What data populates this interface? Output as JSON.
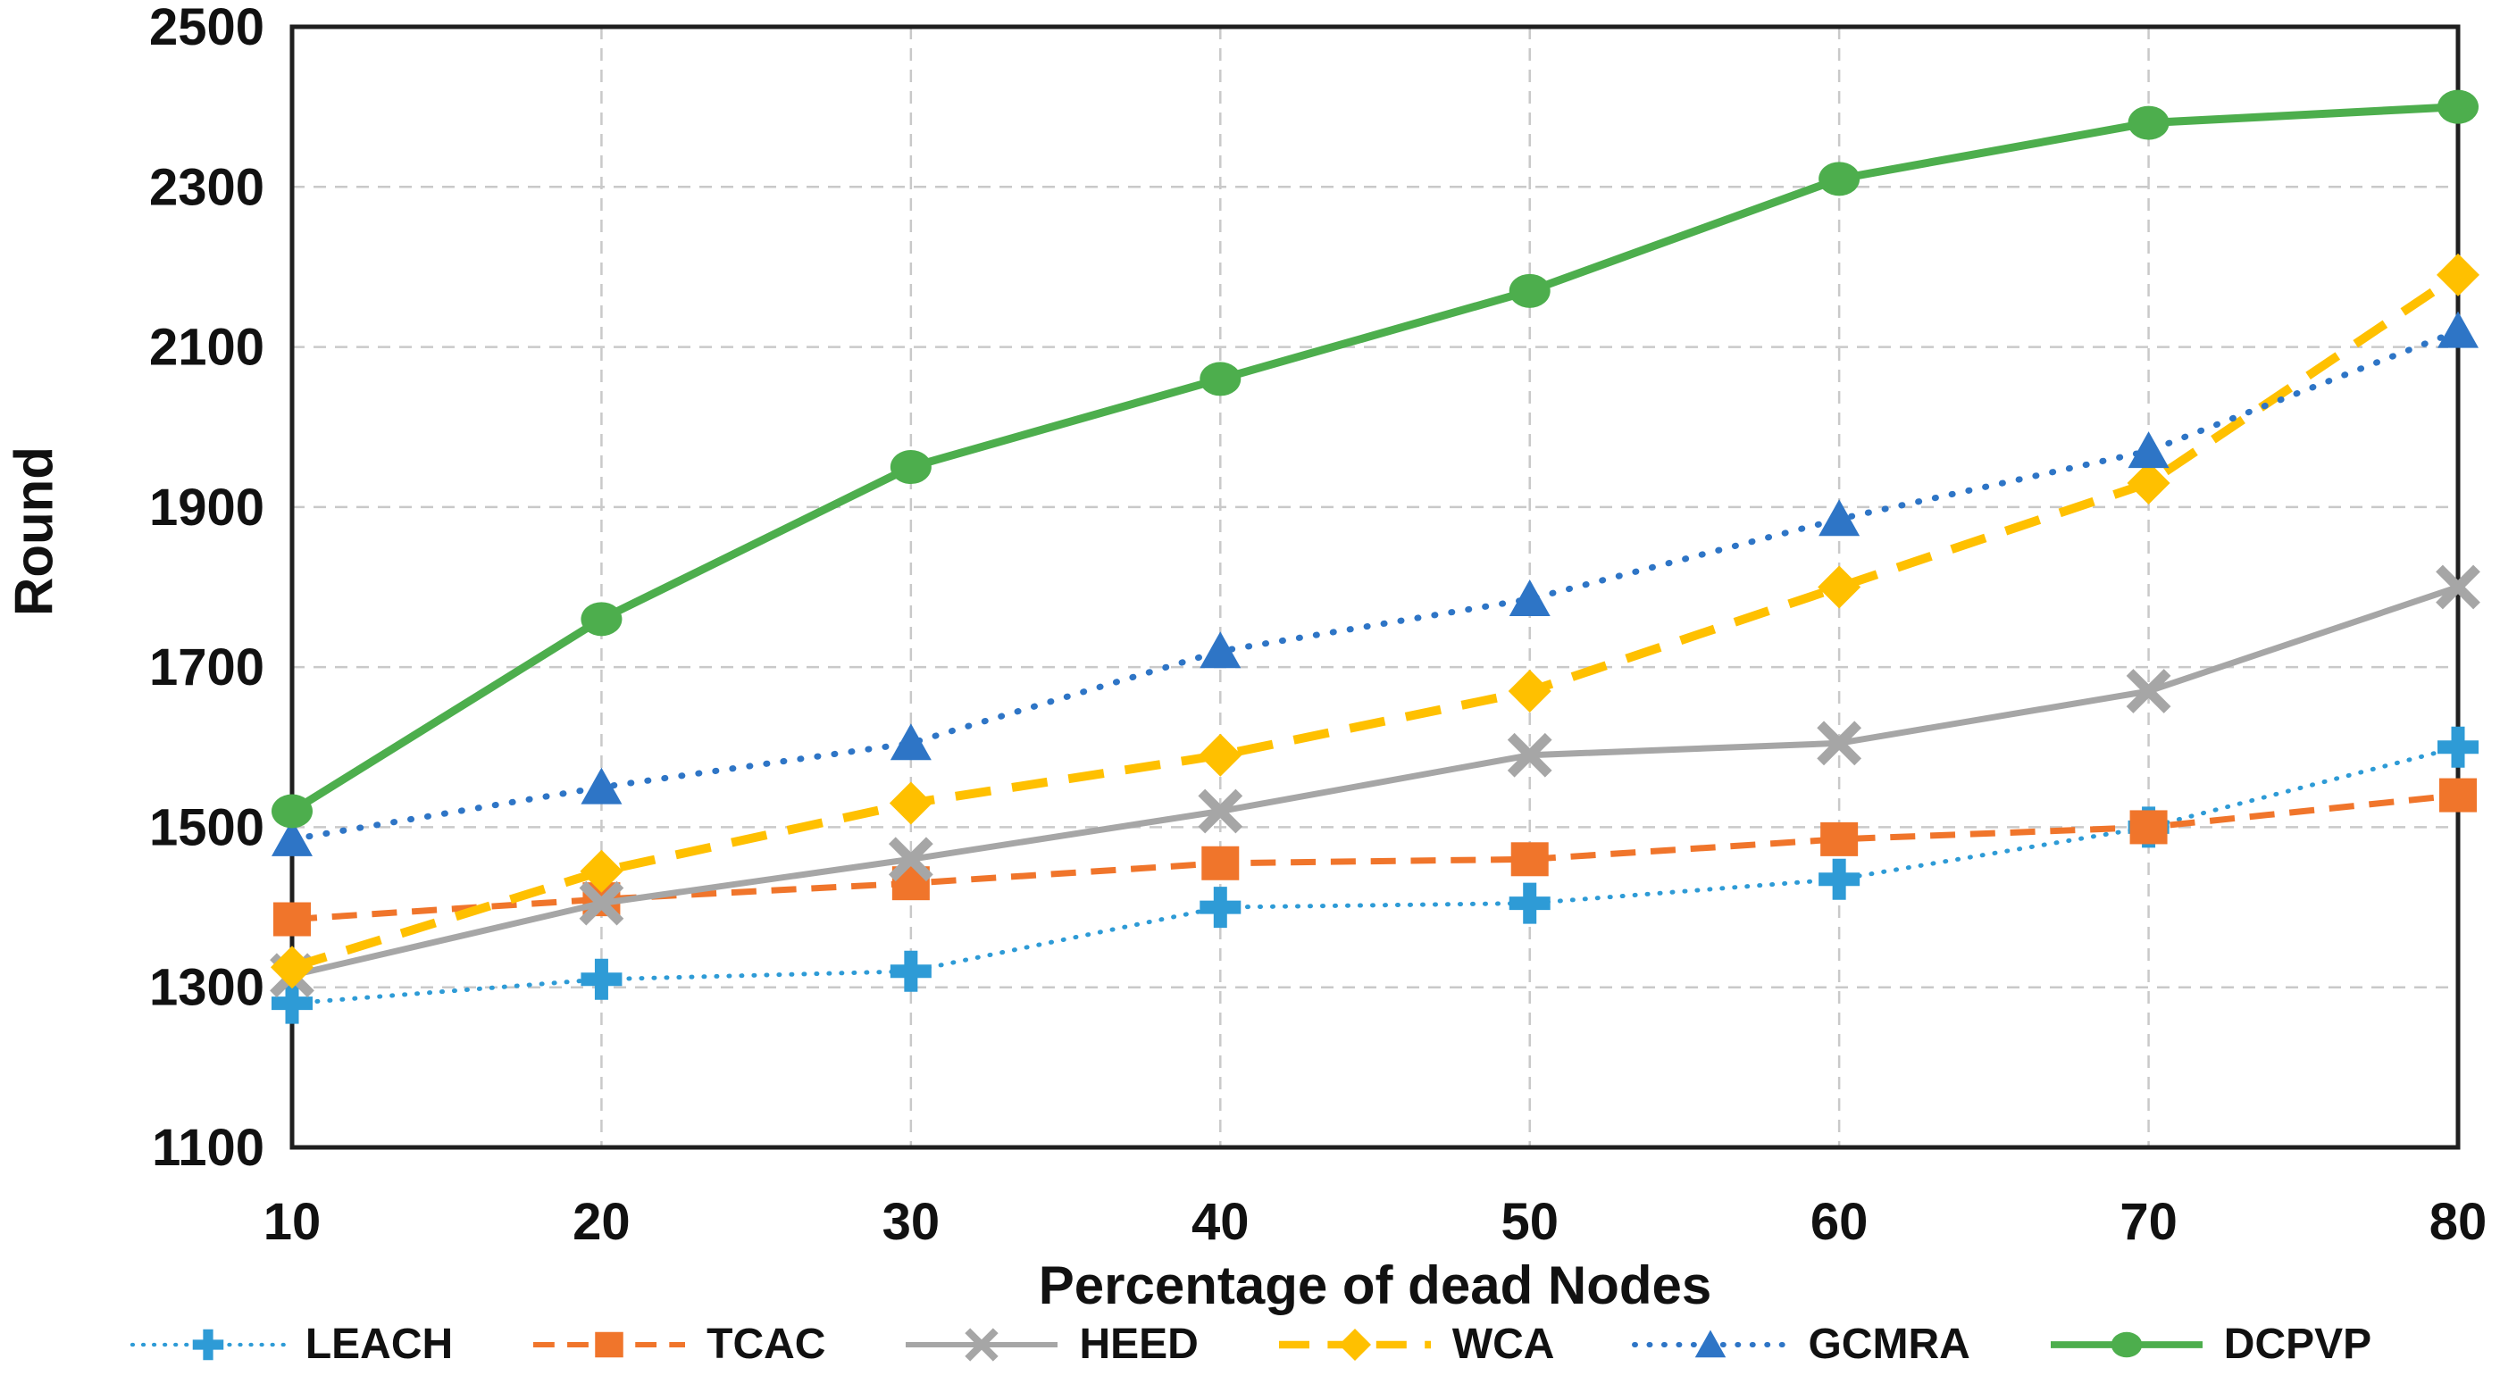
{
  "figure": {
    "y_axis_title": "Round",
    "x_axis_title": "Percentage of dead Nodes"
  },
  "chart_data": {
    "type": "line",
    "title": "",
    "xlabel": "Percentage of dead Nodes",
    "ylabel": "Round",
    "x": [
      10,
      20,
      30,
      40,
      50,
      60,
      70,
      80
    ],
    "xlim": [
      10,
      80
    ],
    "ylim": [
      1100,
      2500
    ],
    "xticks": [
      10,
      20,
      30,
      40,
      50,
      60,
      70,
      80
    ],
    "yticks": [
      1100,
      1300,
      1500,
      1700,
      1900,
      2100,
      2300,
      2500
    ],
    "grid": "dashed-both-axes",
    "legend_position": "bottom",
    "series": [
      {
        "name": "LEACH",
        "color": "#2E9BD6",
        "line_style": "dotted",
        "marker": "plus",
        "values": [
          1280,
          1310,
          1320,
          1400,
          1405,
          1435,
          1500,
          1600
        ]
      },
      {
        "name": "TCAC",
        "color": "#F0752B",
        "line_style": "dashed",
        "marker": "square",
        "values": [
          1385,
          1410,
          1430,
          1455,
          1460,
          1485,
          1500,
          1540
        ]
      },
      {
        "name": "HEED",
        "color": "#A6A6A6",
        "line_style": "solid",
        "marker": "x",
        "values": [
          1315,
          1405,
          1460,
          1520,
          1590,
          1605,
          1670,
          1800
        ]
      },
      {
        "name": "WCA",
        "color": "#FFC000",
        "line_style": "dashed",
        "marker": "diamond",
        "values": [
          1325,
          1445,
          1530,
          1590,
          1670,
          1800,
          1930,
          2190
        ]
      },
      {
        "name": "GCMRA",
        "color": "#2E75C6",
        "line_style": "dotted",
        "marker": "triangle",
        "values": [
          1485,
          1550,
          1605,
          1720,
          1785,
          1885,
          1970,
          2120
        ]
      },
      {
        "name": "DCPVP",
        "color": "#4DAE4D",
        "line_style": "solid",
        "marker": "circle",
        "values": [
          1520,
          1760,
          1950,
          2060,
          2170,
          2310,
          2380,
          2400
        ]
      }
    ]
  },
  "colors": {
    "axis": "#1F1F1F",
    "grid": "#C9C9C9",
    "text": "#111111",
    "background": "#FFFFFF"
  }
}
